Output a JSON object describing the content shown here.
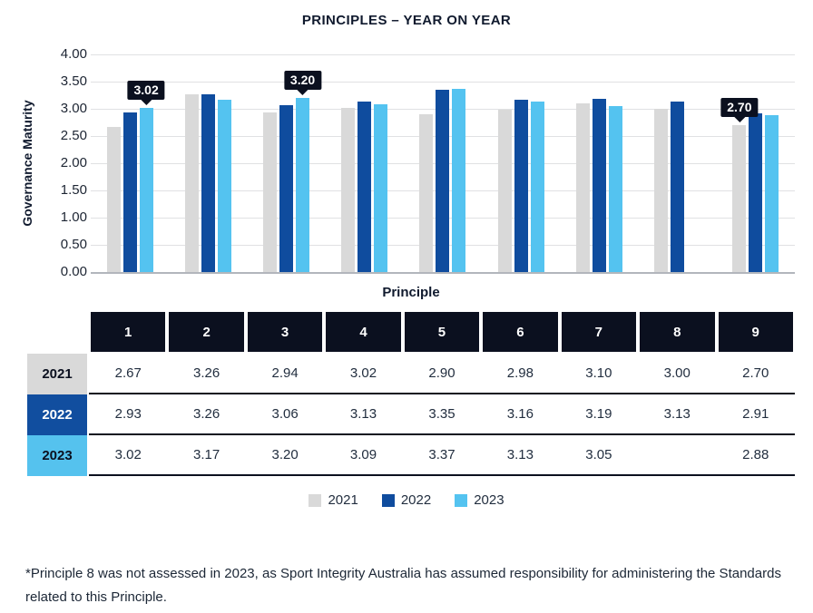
{
  "title": "PRINCIPLES – YEAR ON YEAR",
  "chart_data": {
    "type": "bar",
    "title": "PRINCIPLES – YEAR ON YEAR",
    "xlabel": "Principle",
    "ylabel": "Governance Maturity",
    "ylim": [
      0,
      4
    ],
    "grid": true,
    "legend_position": "bottom",
    "ytick_labels": [
      "4.00",
      "3.50",
      "3.00",
      "2.50",
      "2.00",
      "1.50",
      "1.00",
      "0.50",
      "0.00"
    ],
    "categories": [
      "1",
      "2",
      "3",
      "4",
      "5",
      "6",
      "7",
      "8",
      "9"
    ],
    "series": [
      {
        "name": "2021",
        "color": "#D9D9D9",
        "values": [
          2.67,
          3.26,
          2.94,
          3.02,
          2.9,
          2.98,
          3.1,
          3.0,
          2.7
        ]
      },
      {
        "name": "2022",
        "color": "#0F4C9E",
        "values": [
          2.93,
          3.26,
          3.06,
          3.13,
          3.35,
          3.16,
          3.19,
          3.13,
          2.91
        ]
      },
      {
        "name": "2023",
        "color": "#54C3F0",
        "values": [
          3.02,
          3.17,
          3.2,
          3.09,
          3.37,
          3.13,
          3.05,
          null,
          2.88
        ]
      }
    ],
    "annotations": [
      {
        "label": "3.02",
        "category_index": 0,
        "series_index": 2,
        "value": 3.02
      },
      {
        "label": "3.20",
        "category_index": 2,
        "series_index": 2,
        "value": 3.2
      },
      {
        "label": "2.70",
        "category_index": 8,
        "series_index": 0,
        "value": 2.7
      }
    ]
  },
  "table": {
    "column_headers": [
      "1",
      "2",
      "3",
      "4",
      "5",
      "6",
      "7",
      "8",
      "9"
    ],
    "rows": [
      {
        "label": "2021",
        "label_bg": "#D9D9D9",
        "label_color": "#0B101F",
        "values": [
          "2.67",
          "3.26",
          "2.94",
          "3.02",
          "2.90",
          "2.98",
          "3.10",
          "3.00",
          "2.70"
        ]
      },
      {
        "label": "2022",
        "label_bg": "#114E9F",
        "label_color": "#FFFFFF",
        "values": [
          "2.93",
          "3.26",
          "3.06",
          "3.13",
          "3.35",
          "3.16",
          "3.19",
          "3.13",
          "2.91"
        ]
      },
      {
        "label": "2023",
        "label_bg": "#55C2EE",
        "label_color": "#0B101F",
        "values": [
          "3.02",
          "3.17",
          "3.20",
          "3.09",
          "3.37",
          "3.13",
          "3.05",
          "",
          "2.88"
        ]
      }
    ]
  },
  "legend": [
    {
      "label": "2021",
      "color": "#D9D9D9"
    },
    {
      "label": "2022",
      "color": "#0F4C9E"
    },
    {
      "label": "2023",
      "color": "#54C3F0"
    }
  ],
  "footnote": "*Principle 8 was not assessed in 2023, as Sport Integrity Australia has assumed responsibility for administering the Standards related to this Principle.",
  "colors": {
    "header_bg": "#0B101F",
    "gridline": "#E0E1E3",
    "axis_line": "#B2B6BC",
    "title_text": "#101A2E"
  }
}
